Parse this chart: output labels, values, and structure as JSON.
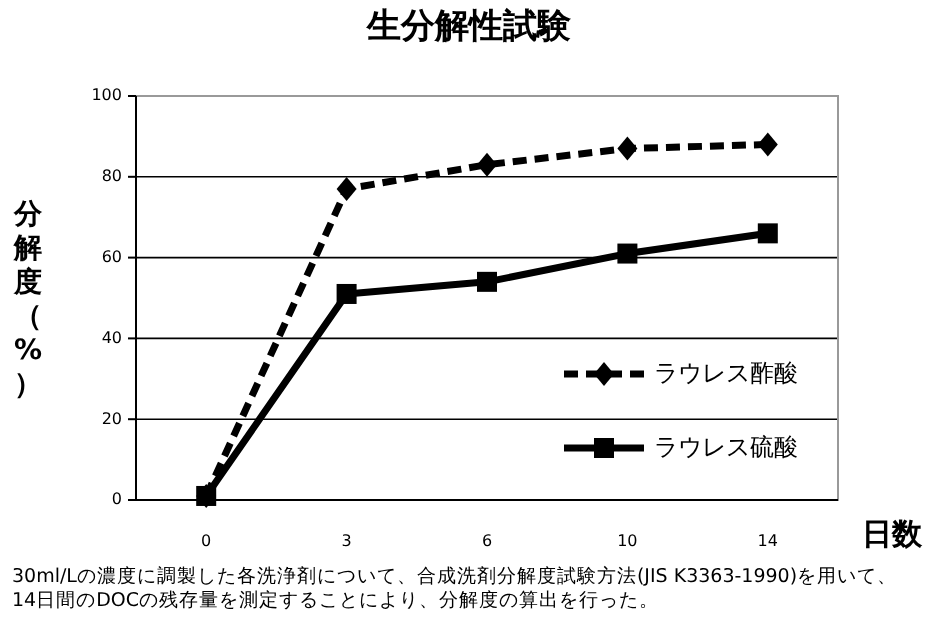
{
  "chart_data": {
    "type": "line",
    "title": "生分解性試験",
    "xlabel": "日数",
    "ylabel": "分解度（%）",
    "categories": [
      "0",
      "3",
      "6",
      "10",
      "14"
    ],
    "series": [
      {
        "name": "ラウレス酢酸",
        "color": "#000000",
        "values": [
          1,
          77,
          83,
          87,
          88
        ],
        "marker": "diamond",
        "line_style": "dashed"
      },
      {
        "name": "ラウレス硫酸",
        "color": "#000000",
        "values": [
          1,
          51,
          54,
          61,
          66
        ],
        "marker": "square",
        "line_style": "solid"
      }
    ],
    "ylim": [
      0,
      100
    ],
    "yticks": [
      0,
      20,
      40,
      60,
      80,
      100
    ],
    "grid": "y",
    "legend": "bottom right",
    "annotations": [
      "30ml/Lの濃度に調製した各洗浄剤について、合成洗剤分解度試験方法(JIS K3363-1990)を用いて、14日間のDOCの残存量を測定することにより、分解度の算出を行った。"
    ]
  }
}
